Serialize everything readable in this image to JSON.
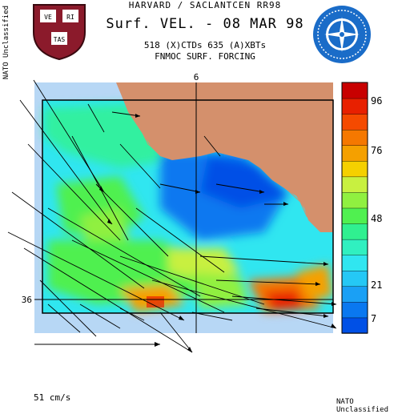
{
  "header": {
    "line1": "HARVARD / SACLANTCEN RR98",
    "line2": "Surf. VEL. - 08 MAR 98",
    "line3": "518 (X)CTDs   635 (A)XBTs",
    "line4": "FNMOC SURF. FORCING"
  },
  "logos": {
    "left": {
      "icon": "harvard-shield-icon",
      "motto": [
        "VE",
        "RI",
        "TAS"
      ],
      "colors": {
        "shield": "#8b1a2b",
        "book": "#ffffff"
      }
    },
    "right": {
      "icon": "nato-saclant-emblem-icon",
      "colors": {
        "disc": "#1a6cc8",
        "rose": "#ffffff"
      }
    }
  },
  "classification": {
    "side": "NATO Unclassified",
    "footer": "NATO Unclassified"
  },
  "map": {
    "longitude_label": "6",
    "latitude_label": "36",
    "scale_label": "51 cm/s",
    "colors": {
      "land": "#d4906c",
      "ocean_bg": "#b7d7f5",
      "frame": "#000000"
    }
  },
  "colorbar": {
    "tick_labels": [
      "96",
      "76",
      "48",
      "21",
      "7"
    ],
    "colors": [
      "#0050e6",
      "#0a78f0",
      "#1aa0f5",
      "#25c8f5",
      "#30e6f0",
      "#30f0c0",
      "#30f090",
      "#50f050",
      "#90f040",
      "#c8f040",
      "#f5d000",
      "#f5a000",
      "#f57800",
      "#f54a00",
      "#e82000",
      "#c80000"
    ]
  }
}
